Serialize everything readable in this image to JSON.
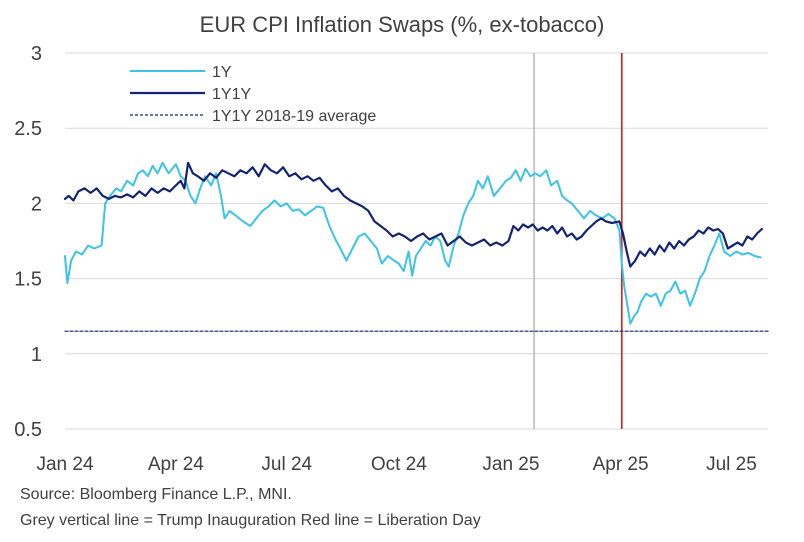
{
  "title": "EUR CPI Inflation Swaps (%, ex-tobacco)",
  "footnotes": {
    "source": "Source: Bloomberg Finance L.P., MNI.",
    "note": "Grey vertical line = Trump Inauguration  Red line = Liberation Day"
  },
  "colors": {
    "series_1y": "#3cc3e6",
    "series_1y1y": "#142374",
    "average": "#142374",
    "inauguration_line": "#a6a6a6",
    "liberation_line": "#d62020",
    "grid": "#d9d9d9"
  },
  "chart_data": {
    "type": "line",
    "title": "EUR CPI Inflation Swaps (%, ex-tobacco)",
    "ylim": [
      0.5,
      3
    ],
    "yticks": [
      0.5,
      1,
      1.5,
      2,
      2.5,
      3
    ],
    "ytick_labels": [
      "0.5",
      "1",
      "1.5",
      "2",
      "2.5",
      "3"
    ],
    "xlim": [
      "2024-01-01",
      "2025-07-31"
    ],
    "xticks": [
      {
        "date": "2024-01-01",
        "label": "Jan 24"
      },
      {
        "date": "2024-04-01",
        "label": "Apr 24"
      },
      {
        "date": "2024-07-01",
        "label": "Jul 24"
      },
      {
        "date": "2024-10-01",
        "label": "Oct 24"
      },
      {
        "date": "2025-01-01",
        "label": "Jan 25"
      },
      {
        "date": "2025-04-01",
        "label": "Apr 25"
      },
      {
        "date": "2025-07-01",
        "label": "Jul 25"
      }
    ],
    "grid": "horizontal",
    "legend": "top-left",
    "series": [
      {
        "name": "1Y",
        "points": [
          [
            "2024-01-01",
            1.65
          ],
          [
            "2024-01-03",
            1.47
          ],
          [
            "2024-01-06",
            1.62
          ],
          [
            "2024-01-10",
            1.68
          ],
          [
            "2024-01-15",
            1.66
          ],
          [
            "2024-01-20",
            1.72
          ],
          [
            "2024-01-25",
            1.7
          ],
          [
            "2024-01-31",
            1.72
          ],
          [
            "2024-02-03",
            2.0
          ],
          [
            "2024-02-07",
            2.05
          ],
          [
            "2024-02-12",
            2.1
          ],
          [
            "2024-02-16",
            2.08
          ],
          [
            "2024-02-21",
            2.15
          ],
          [
            "2024-02-26",
            2.12
          ],
          [
            "2024-03-01",
            2.2
          ],
          [
            "2024-03-05",
            2.22
          ],
          [
            "2024-03-09",
            2.18
          ],
          [
            "2024-03-13",
            2.25
          ],
          [
            "2024-03-17",
            2.2
          ],
          [
            "2024-03-21",
            2.27
          ],
          [
            "2024-03-26",
            2.2
          ],
          [
            "2024-04-01",
            2.26
          ],
          [
            "2024-04-05",
            2.18
          ],
          [
            "2024-04-09",
            2.15
          ],
          [
            "2024-04-13",
            2.05
          ],
          [
            "2024-04-17",
            2.0
          ],
          [
            "2024-04-21",
            2.1
          ],
          [
            "2024-04-25",
            2.18
          ],
          [
            "2024-04-30",
            2.12
          ],
          [
            "2024-05-04",
            2.2
          ],
          [
            "2024-05-08",
            2.05
          ],
          [
            "2024-05-11",
            1.9
          ],
          [
            "2024-05-15",
            1.95
          ],
          [
            "2024-05-20",
            1.92
          ],
          [
            "2024-05-26",
            1.88
          ],
          [
            "2024-06-01",
            1.85
          ],
          [
            "2024-06-06",
            1.9
          ],
          [
            "2024-06-11",
            1.95
          ],
          [
            "2024-06-16",
            1.98
          ],
          [
            "2024-06-21",
            2.02
          ],
          [
            "2024-06-26",
            1.98
          ],
          [
            "2024-07-01",
            2.0
          ],
          [
            "2024-07-06",
            1.95
          ],
          [
            "2024-07-11",
            1.96
          ],
          [
            "2024-07-16",
            1.92
          ],
          [
            "2024-07-21",
            1.95
          ],
          [
            "2024-07-26",
            1.98
          ],
          [
            "2024-07-31",
            1.97
          ],
          [
            "2024-08-05",
            1.85
          ],
          [
            "2024-08-10",
            1.76
          ],
          [
            "2024-08-14",
            1.7
          ],
          [
            "2024-08-19",
            1.62
          ],
          [
            "2024-08-24",
            1.7
          ],
          [
            "2024-08-29",
            1.78
          ],
          [
            "2024-09-03",
            1.8
          ],
          [
            "2024-09-08",
            1.75
          ],
          [
            "2024-09-13",
            1.7
          ],
          [
            "2024-09-17",
            1.6
          ],
          [
            "2024-09-22",
            1.65
          ],
          [
            "2024-09-27",
            1.62
          ],
          [
            "2024-10-01",
            1.6
          ],
          [
            "2024-10-05",
            1.55
          ],
          [
            "2024-10-09",
            1.68
          ],
          [
            "2024-10-12",
            1.52
          ],
          [
            "2024-10-15",
            1.65
          ],
          [
            "2024-10-19",
            1.7
          ],
          [
            "2024-10-23",
            1.75
          ],
          [
            "2024-10-27",
            1.72
          ],
          [
            "2024-10-31",
            1.78
          ],
          [
            "2024-11-04",
            1.75
          ],
          [
            "2024-11-08",
            1.62
          ],
          [
            "2024-11-11",
            1.58
          ],
          [
            "2024-11-15",
            1.72
          ],
          [
            "2024-11-19",
            1.8
          ],
          [
            "2024-11-23",
            1.92
          ],
          [
            "2024-11-27",
            2.0
          ],
          [
            "2024-12-01",
            2.05
          ],
          [
            "2024-12-05",
            2.15
          ],
          [
            "2024-12-09",
            2.1
          ],
          [
            "2024-12-13",
            2.18
          ],
          [
            "2024-12-18",
            2.05
          ],
          [
            "2024-12-23",
            2.1
          ],
          [
            "2024-12-28",
            2.15
          ],
          [
            "2025-01-01",
            2.17
          ],
          [
            "2025-01-05",
            2.22
          ],
          [
            "2025-01-09",
            2.15
          ],
          [
            "2025-01-13",
            2.23
          ],
          [
            "2025-01-17",
            2.18
          ],
          [
            "2025-01-21",
            2.2
          ],
          [
            "2025-01-25",
            2.18
          ],
          [
            "2025-01-30",
            2.22
          ],
          [
            "2025-02-03",
            2.12
          ],
          [
            "2025-02-08",
            2.15
          ],
          [
            "2025-02-12",
            2.05
          ],
          [
            "2025-02-16",
            2.02
          ],
          [
            "2025-02-20",
            2.0
          ],
          [
            "2025-02-25",
            1.95
          ],
          [
            "2025-03-02",
            1.9
          ],
          [
            "2025-03-07",
            1.95
          ],
          [
            "2025-03-12",
            1.92
          ],
          [
            "2025-03-17",
            1.9
          ],
          [
            "2025-03-22",
            1.93
          ],
          [
            "2025-03-27",
            1.9
          ],
          [
            "2025-03-31",
            1.82
          ],
          [
            "2025-04-02",
            1.6
          ],
          [
            "2025-04-04",
            1.45
          ],
          [
            "2025-04-07",
            1.3
          ],
          [
            "2025-04-09",
            1.2
          ],
          [
            "2025-04-12",
            1.25
          ],
          [
            "2025-04-15",
            1.28
          ],
          [
            "2025-04-18",
            1.35
          ],
          [
            "2025-04-22",
            1.4
          ],
          [
            "2025-04-26",
            1.38
          ],
          [
            "2025-04-30",
            1.4
          ],
          [
            "2025-05-04",
            1.32
          ],
          [
            "2025-05-08",
            1.4
          ],
          [
            "2025-05-12",
            1.42
          ],
          [
            "2025-05-16",
            1.48
          ],
          [
            "2025-05-20",
            1.4
          ],
          [
            "2025-05-24",
            1.42
          ],
          [
            "2025-05-28",
            1.32
          ],
          [
            "2025-06-01",
            1.4
          ],
          [
            "2025-06-05",
            1.5
          ],
          [
            "2025-06-09",
            1.55
          ],
          [
            "2025-06-13",
            1.65
          ],
          [
            "2025-06-17",
            1.72
          ],
          [
            "2025-06-21",
            1.8
          ],
          [
            "2025-06-25",
            1.68
          ],
          [
            "2025-06-30",
            1.65
          ],
          [
            "2025-07-05",
            1.68
          ],
          [
            "2025-07-10",
            1.66
          ],
          [
            "2025-07-15",
            1.67
          ],
          [
            "2025-07-20",
            1.65
          ],
          [
            "2025-07-25",
            1.64
          ]
        ]
      },
      {
        "name": "1Y1Y",
        "points": [
          [
            "2024-01-01",
            2.03
          ],
          [
            "2024-01-04",
            2.05
          ],
          [
            "2024-01-08",
            2.02
          ],
          [
            "2024-01-12",
            2.08
          ],
          [
            "2024-01-17",
            2.1
          ],
          [
            "2024-01-22",
            2.07
          ],
          [
            "2024-01-27",
            2.1
          ],
          [
            "2024-02-01",
            2.05
          ],
          [
            "2024-02-06",
            2.03
          ],
          [
            "2024-02-11",
            2.05
          ],
          [
            "2024-02-16",
            2.04
          ],
          [
            "2024-02-21",
            2.06
          ],
          [
            "2024-02-26",
            2.04
          ],
          [
            "2024-03-02",
            2.08
          ],
          [
            "2024-03-07",
            2.05
          ],
          [
            "2024-03-12",
            2.1
          ],
          [
            "2024-03-17",
            2.07
          ],
          [
            "2024-03-22",
            2.1
          ],
          [
            "2024-03-27",
            2.08
          ],
          [
            "2024-04-01",
            2.12
          ],
          [
            "2024-04-05",
            2.15
          ],
          [
            "2024-04-08",
            2.1
          ],
          [
            "2024-04-11",
            2.27
          ],
          [
            "2024-04-15",
            2.2
          ],
          [
            "2024-04-19",
            2.18
          ],
          [
            "2024-04-24",
            2.15
          ],
          [
            "2024-04-29",
            2.2
          ],
          [
            "2024-05-04",
            2.17
          ],
          [
            "2024-05-09",
            2.22
          ],
          [
            "2024-05-14",
            2.2
          ],
          [
            "2024-05-19",
            2.18
          ],
          [
            "2024-05-24",
            2.22
          ],
          [
            "2024-05-29",
            2.2
          ],
          [
            "2024-06-03",
            2.24
          ],
          [
            "2024-06-08",
            2.18
          ],
          [
            "2024-06-13",
            2.26
          ],
          [
            "2024-06-18",
            2.22
          ],
          [
            "2024-06-23",
            2.2
          ],
          [
            "2024-06-28",
            2.24
          ],
          [
            "2024-07-03",
            2.18
          ],
          [
            "2024-07-08",
            2.2
          ],
          [
            "2024-07-13",
            2.16
          ],
          [
            "2024-07-18",
            2.18
          ],
          [
            "2024-07-23",
            2.15
          ],
          [
            "2024-07-28",
            2.17
          ],
          [
            "2024-08-02",
            2.12
          ],
          [
            "2024-08-07",
            2.08
          ],
          [
            "2024-08-12",
            2.1
          ],
          [
            "2024-08-17",
            2.05
          ],
          [
            "2024-08-22",
            2.02
          ],
          [
            "2024-08-27",
            2.0
          ],
          [
            "2024-09-01",
            1.98
          ],
          [
            "2024-09-06",
            1.95
          ],
          [
            "2024-09-11",
            1.88
          ],
          [
            "2024-09-16",
            1.85
          ],
          [
            "2024-09-21",
            1.82
          ],
          [
            "2024-09-26",
            1.78
          ],
          [
            "2024-10-01",
            1.8
          ],
          [
            "2024-10-06",
            1.78
          ],
          [
            "2024-10-11",
            1.75
          ],
          [
            "2024-10-16",
            1.78
          ],
          [
            "2024-10-21",
            1.8
          ],
          [
            "2024-10-26",
            1.76
          ],
          [
            "2024-10-31",
            1.78
          ],
          [
            "2024-11-05",
            1.8
          ],
          [
            "2024-11-10",
            1.72
          ],
          [
            "2024-11-15",
            1.75
          ],
          [
            "2024-11-20",
            1.78
          ],
          [
            "2024-11-25",
            1.74
          ],
          [
            "2024-11-30",
            1.72
          ],
          [
            "2024-12-05",
            1.74
          ],
          [
            "2024-12-10",
            1.76
          ],
          [
            "2024-12-15",
            1.72
          ],
          [
            "2024-12-20",
            1.74
          ],
          [
            "2024-12-25",
            1.72
          ],
          [
            "2024-12-30",
            1.75
          ],
          [
            "2025-01-03",
            1.85
          ],
          [
            "2025-01-07",
            1.82
          ],
          [
            "2025-01-11",
            1.86
          ],
          [
            "2025-01-15",
            1.84
          ],
          [
            "2025-01-19",
            1.86
          ],
          [
            "2025-01-23",
            1.82
          ],
          [
            "2025-01-27",
            1.84
          ],
          [
            "2025-01-31",
            1.82
          ],
          [
            "2025-02-04",
            1.85
          ],
          [
            "2025-02-08",
            1.8
          ],
          [
            "2025-02-12",
            1.84
          ],
          [
            "2025-02-16",
            1.78
          ],
          [
            "2025-02-20",
            1.8
          ],
          [
            "2025-02-24",
            1.76
          ],
          [
            "2025-02-28",
            1.78
          ],
          [
            "2025-03-04",
            1.82
          ],
          [
            "2025-03-08",
            1.85
          ],
          [
            "2025-03-12",
            1.88
          ],
          [
            "2025-03-16",
            1.9
          ],
          [
            "2025-03-20",
            1.88
          ],
          [
            "2025-03-25",
            1.87
          ],
          [
            "2025-03-31",
            1.88
          ],
          [
            "2025-04-03",
            1.8
          ],
          [
            "2025-04-06",
            1.68
          ],
          [
            "2025-04-09",
            1.58
          ],
          [
            "2025-04-13",
            1.62
          ],
          [
            "2025-04-17",
            1.68
          ],
          [
            "2025-04-21",
            1.65
          ],
          [
            "2025-04-25",
            1.7
          ],
          [
            "2025-04-29",
            1.66
          ],
          [
            "2025-05-03",
            1.72
          ],
          [
            "2025-05-07",
            1.68
          ],
          [
            "2025-05-11",
            1.74
          ],
          [
            "2025-05-15",
            1.7
          ],
          [
            "2025-05-19",
            1.75
          ],
          [
            "2025-05-23",
            1.72
          ],
          [
            "2025-05-27",
            1.76
          ],
          [
            "2025-05-31",
            1.78
          ],
          [
            "2025-06-04",
            1.82
          ],
          [
            "2025-06-08",
            1.8
          ],
          [
            "2025-06-12",
            1.84
          ],
          [
            "2025-06-16",
            1.82
          ],
          [
            "2025-06-20",
            1.83
          ],
          [
            "2025-06-24",
            1.8
          ],
          [
            "2025-06-28",
            1.7
          ],
          [
            "2025-07-02",
            1.72
          ],
          [
            "2025-07-06",
            1.74
          ],
          [
            "2025-07-10",
            1.72
          ],
          [
            "2025-07-14",
            1.78
          ],
          [
            "2025-07-18",
            1.76
          ],
          [
            "2025-07-22",
            1.8
          ],
          [
            "2025-07-26",
            1.83
          ]
        ]
      },
      {
        "name": "1Y1Y 2018-19 average",
        "style": "dashed",
        "points": [
          [
            "2024-01-01",
            1.15
          ],
          [
            "2025-07-31",
            1.15
          ]
        ]
      }
    ],
    "vertical_lines": [
      {
        "date": "2025-01-20",
        "color_key": "inauguration_line"
      },
      {
        "date": "2025-04-02",
        "color_key": "liberation_line"
      }
    ]
  }
}
